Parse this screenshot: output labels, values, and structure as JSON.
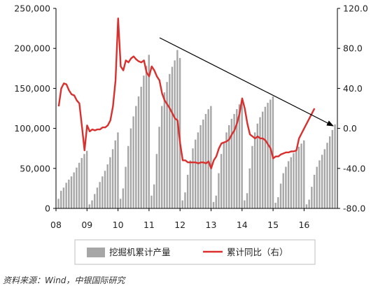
{
  "chart_data": {
    "type": "bar+line",
    "title": "",
    "x_tick_labels": [
      "08",
      "09",
      "10",
      "11",
      "12",
      "13",
      "14",
      "15",
      "16"
    ],
    "y_left": {
      "min": 0,
      "max": 250000,
      "ticks": [
        "0",
        "50,000",
        "100,000",
        "150,000",
        "200,000",
        "250,000"
      ]
    },
    "y_right": {
      "min": -80,
      "max": 120,
      "ticks": [
        "-80.0",
        "-40.0",
        "0.0",
        "40.0",
        "80.0",
        "120.0"
      ]
    },
    "legend": {
      "bar_label": "挖掘机累计产量",
      "line_label": "累计同比（右）"
    },
    "colors": {
      "bar": "#a6a6a6",
      "line": "#d9302e",
      "arrow": "#000000",
      "axis": "#000000"
    },
    "series": [
      {
        "name": "挖掘机累计产量",
        "axis": "left",
        "type": "bar",
        "values": [
          12000,
          22000,
          26000,
          32000,
          36000,
          40000,
          45000,
          51000,
          57000,
          63000,
          68000,
          72000,
          5000,
          10000,
          18000,
          26000,
          33000,
          40000,
          47000,
          55000,
          64000,
          74000,
          85000,
          95000,
          12000,
          25000,
          52000,
          78000,
          100000,
          115000,
          128000,
          140000,
          152000,
          166000,
          178000,
          192000,
          16000,
          30000,
          68000,
          102000,
          128000,
          145000,
          158000,
          168000,
          177000,
          185000,
          198000,
          188000,
          10000,
          20000,
          42000,
          60000,
          75000,
          86000,
          95000,
          104000,
          111000,
          118000,
          124000,
          128000,
          8000,
          16000,
          44000,
          68000,
          83000,
          95000,
          104000,
          112000,
          118000,
          124000,
          130000,
          135000,
          10000,
          19000,
          50000,
          78000,
          95000,
          106000,
          114000,
          121000,
          127000,
          132000,
          136000,
          140000,
          7000,
          14000,
          31000,
          44000,
          52000,
          59000,
          64000,
          69000,
          73000,
          77000,
          81000,
          85000,
          5000,
          11000,
          27000,
          42000,
          52000,
          60000,
          67000,
          74000,
          82000,
          90000,
          98000,
          105000
        ]
      },
      {
        "name": "累计同比（右）",
        "axis": "right",
        "type": "line",
        "values": [
          22,
          40,
          45,
          44,
          38,
          34,
          33,
          28,
          25,
          2,
          -22,
          3,
          -3,
          -1,
          -2,
          -1,
          -1,
          1,
          1,
          3,
          8,
          22,
          48,
          110,
          62,
          58,
          68,
          66,
          70,
          72,
          69,
          67,
          66,
          68,
          56,
          52,
          62,
          58,
          52,
          48,
          35,
          28,
          24,
          20,
          15,
          10,
          8,
          -15,
          -32,
          -32,
          -34,
          -34,
          -34,
          -34,
          -35,
          -34,
          -34,
          -35,
          -33,
          -40,
          -32,
          -28,
          -20,
          -15,
          -14,
          -13,
          -11,
          -6,
          -2,
          5,
          15,
          30,
          20,
          5,
          -6,
          -8,
          -10,
          -8,
          -10,
          -10,
          -12,
          -16,
          -20,
          -30,
          -28,
          -28,
          -26,
          -25,
          -24,
          -24,
          -23,
          -23,
          -22,
          -10,
          -5,
          0,
          5,
          10,
          15,
          20
        ]
      }
    ]
  },
  "source_text": "资料来源：Wind，中银国际研究"
}
